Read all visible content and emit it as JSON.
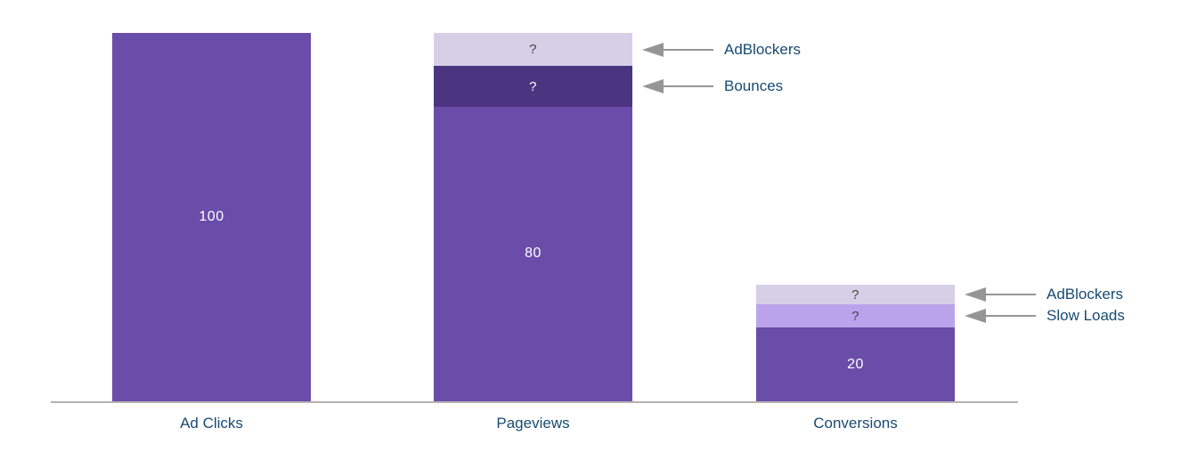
{
  "chart_data": {
    "type": "bar",
    "variant": "stacked_funnel",
    "title": "",
    "xlabel": "",
    "ylabel": "",
    "ylim": [
      0,
      100
    ],
    "grid": false,
    "legend": "none",
    "categories": [
      "Ad Clicks",
      "Pageviews",
      "Conversions"
    ],
    "colors": {
      "bar_primary": "#6A4CA9",
      "bar_dark": "#4B3581",
      "bar_lavender": "#D5D0E6",
      "bar_light_purple": "#BBA3EC",
      "axis_line": "#B3B3B3",
      "arrow": "#959595",
      "text_navy": "#174A72",
      "value_text_light": "#FFFFFF",
      "value_text_dark": "#444444"
    },
    "bars": [
      {
        "category": "Ad Clicks",
        "total_label": "100",
        "segments": [
          {
            "name": "ad-clicks",
            "value": 100,
            "label": "100",
            "color": "#6A4CA9",
            "label_color": "#FFFFFF",
            "annotation": null
          }
        ]
      },
      {
        "category": "Pageviews",
        "total_label": "80",
        "segments": [
          {
            "name": "pageviews",
            "value": 80,
            "label": "80",
            "color": "#6A4CA9",
            "label_color": "#FFFFFF",
            "annotation": null
          },
          {
            "name": "bounces",
            "value": 11,
            "estimated": true,
            "label": "?",
            "color": "#4B3581",
            "label_color": "#FFFFFF",
            "annotation": "Bounces"
          },
          {
            "name": "adblockers",
            "value": 9,
            "estimated": true,
            "label": "?",
            "color": "#D5D0E6",
            "label_color": "#444444",
            "annotation": "AdBlockers"
          }
        ]
      },
      {
        "category": "Conversions",
        "total_label": "20",
        "segments": [
          {
            "name": "conversions",
            "value": 20,
            "label": "20",
            "color": "#6A4CA9",
            "label_color": "#FFFFFF",
            "annotation": null
          },
          {
            "name": "slow-loads",
            "value": 6.3,
            "estimated": true,
            "label": "?",
            "color": "#BBA3EC",
            "label_color": "#444444",
            "annotation": "Slow Loads"
          },
          {
            "name": "adblockers",
            "value": 5.3,
            "estimated": true,
            "label": "?",
            "color": "#D5D0E6",
            "label_color": "#444444",
            "annotation": "AdBlockers"
          }
        ]
      }
    ],
    "annotations": [
      "AdBlockers",
      "Bounces",
      "AdBlockers",
      "Slow Loads"
    ]
  }
}
